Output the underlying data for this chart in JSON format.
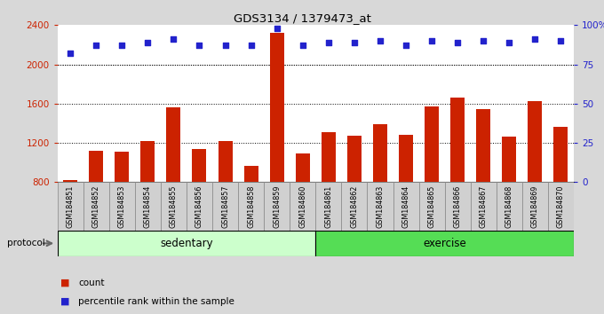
{
  "title": "GDS3134 / 1379473_at",
  "samples": [
    "GSM184851",
    "GSM184852",
    "GSM184853",
    "GSM184854",
    "GSM184855",
    "GSM184856",
    "GSM184857",
    "GSM184858",
    "GSM184859",
    "GSM184860",
    "GSM184861",
    "GSM184862",
    "GSM184863",
    "GSM184864",
    "GSM184865",
    "GSM184866",
    "GSM184867",
    "GSM184868",
    "GSM184869",
    "GSM184870"
  ],
  "counts": [
    820,
    1120,
    1110,
    1220,
    1560,
    1140,
    1220,
    970,
    2320,
    1090,
    1310,
    1270,
    1390,
    1280,
    1570,
    1660,
    1540,
    1260,
    1630,
    1360
  ],
  "percentiles": [
    82,
    87,
    87,
    89,
    91,
    87,
    87,
    87,
    98,
    87,
    89,
    89,
    90,
    87,
    90,
    89,
    90,
    89,
    91,
    90
  ],
  "bar_color": "#cc2200",
  "dot_color": "#2222cc",
  "ylim_left": [
    800,
    2400
  ],
  "ylim_right": [
    0,
    100
  ],
  "yticks_left": [
    800,
    1200,
    1600,
    2000,
    2400
  ],
  "yticks_right": [
    0,
    25,
    50,
    75,
    100
  ],
  "ytick_labels_right": [
    "0",
    "25",
    "50",
    "75",
    "100%"
  ],
  "grid_values": [
    1200,
    1600,
    2000
  ],
  "sedentary_count": 10,
  "exercise_count": 10,
  "sedentary_color": "#ccffcc",
  "exercise_color": "#55dd55",
  "protocol_label": "protocol",
  "sedentary_label": "sedentary",
  "exercise_label": "exercise",
  "legend_count_label": "count",
  "legend_pct_label": "percentile rank within the sample",
  "fig_bg": "#d8d8d8",
  "plot_bg": "#ffffff",
  "xtick_bg": "#d0d0d0"
}
